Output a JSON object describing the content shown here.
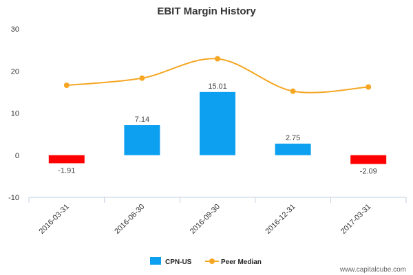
{
  "chart_data": {
    "type": "bar",
    "title": "EBIT Margin History",
    "categories": [
      "2016-03-31",
      "2016-06-30",
      "2016-09-30",
      "2016-12-31",
      "2017-03-31"
    ],
    "series": [
      {
        "name": "CPN-US",
        "type": "bar",
        "values": [
          -1.91,
          7.14,
          15.01,
          2.75,
          -2.09
        ],
        "labels": [
          "-1.91",
          "7.14",
          "15.01",
          "2.75",
          "-2.09"
        ],
        "color": "#0ea0f0",
        "negative_color": "#ff0000"
      },
      {
        "name": "Peer Median",
        "type": "line",
        "values": [
          16.6,
          18.3,
          22.9,
          15.2,
          16.2
        ],
        "color": "#f5a623"
      }
    ],
    "ylim": [
      -10,
      30
    ],
    "yticks": [
      "-10",
      "0",
      "10",
      "20",
      "30"
    ],
    "ytick_values": [
      -10,
      0,
      10,
      20,
      30
    ],
    "xlabel": "",
    "ylabel": "",
    "grid": false,
    "legend_position": "bottom-center"
  },
  "watermark": "www.capitalcube.com"
}
